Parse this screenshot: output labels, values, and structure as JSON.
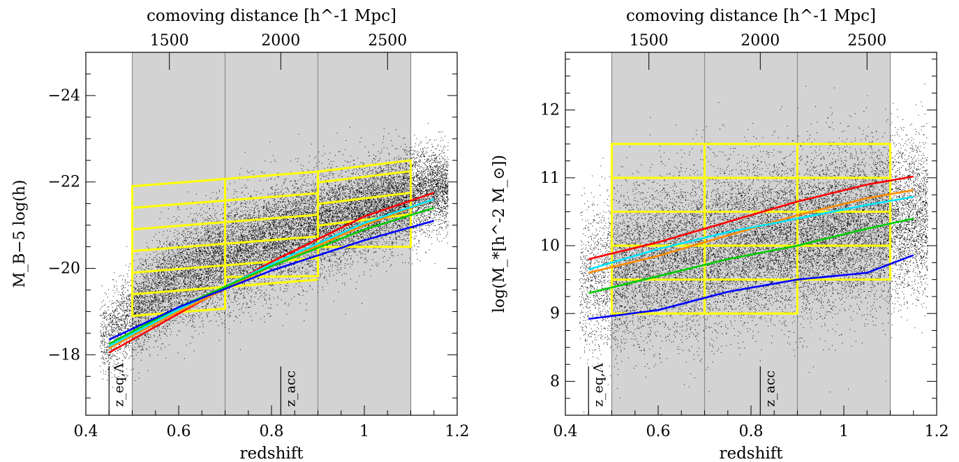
{
  "chart_data": [
    {
      "type": "scatter",
      "title": "",
      "xlabel": "redshift",
      "ylabel": "M_B−5 log(h)",
      "top_axis_label": "comoving distance [h^-1 Mpc]",
      "top_ticks": [
        1500,
        2000,
        2500
      ],
      "top_tick_z": [
        0.58,
        0.82,
        1.05
      ],
      "xlim": [
        0.4,
        1.2
      ],
      "ylim": [
        -16.6,
        -25.0
      ],
      "y_inverted": true,
      "xticks": [
        0.4,
        0.6,
        0.8,
        1.0,
        1.2
      ],
      "xtick_labels": [
        "0.4",
        "0.6",
        "0.8",
        "1",
        "1.2"
      ],
      "yticks": [
        -18,
        -20,
        -22,
        -24
      ],
      "ytick_labels": [
        "−18",
        "−20",
        "−22",
        "−24"
      ],
      "markers": [
        {
          "label": "z_eq,Λ",
          "x": 0.45
        },
        {
          "label": "z_acc",
          "x": 0.82
        }
      ],
      "shaded_volumes": {
        "x_edges": [
          0.5,
          0.7,
          0.9,
          1.1
        ],
        "color": "#d3d3d3"
      },
      "scatter_cloud": {
        "color": "#000000",
        "x_range": [
          0.43,
          1.18
        ],
        "upper_edge": {
          "x": [
            0.43,
            0.6,
            0.8,
            1.0,
            1.15
          ],
          "y": [
            -19.2,
            -21.0,
            -21.9,
            -22.4,
            -22.8
          ]
        },
        "lower_edge": {
          "x": [
            0.43,
            0.6,
            0.8,
            1.0,
            1.15
          ],
          "y": [
            -17.4,
            -18.7,
            -19.5,
            -20.3,
            -20.9
          ]
        }
      },
      "selection_boxes": {
        "color": "#ffff00",
        "columns": [
          {
            "x0": 0.5,
            "x1": 0.7,
            "top": [
              -21.9,
              -22.07
            ],
            "bottom": [
              -18.9,
              -19.07
            ],
            "rows": [
              -21.4,
              -20.9,
              -20.4,
              -19.9,
              -19.4
            ]
          },
          {
            "x0": 0.7,
            "x1": 0.9,
            "top": [
              -22.07,
              -22.24
            ],
            "bottom": [
              -19.8,
              -19.82
            ],
            "rows": [
              -21.57,
              -21.07,
              -20.57,
              -20.07,
              -19.57
            ]
          },
          {
            "x0": 0.9,
            "x1": 1.1,
            "top": [
              -22.24,
              -22.5
            ],
            "bottom": [
              -20.5,
              -20.5
            ],
            "rows": [
              -21.99,
              -21.49,
              -20.99
            ]
          }
        ]
      },
      "series": [
        {
          "color": "#ff0000",
          "x": [
            0.45,
            0.6,
            0.8,
            1.0,
            1.15
          ],
          "y": [
            -18.05,
            -18.95,
            -20.15,
            -21.2,
            -21.75
          ]
        },
        {
          "color": "#ff8c00",
          "x": [
            0.45,
            0.6,
            0.8,
            1.0,
            1.15
          ],
          "y": [
            -18.15,
            -19.0,
            -20.05,
            -21.0,
            -21.6
          ]
        },
        {
          "color": "#00e5ff",
          "x": [
            0.45,
            0.6,
            0.8,
            1.0,
            1.15
          ],
          "y": [
            -18.2,
            -19.05,
            -20.1,
            -21.05,
            -21.6
          ]
        },
        {
          "color": "#00cc00",
          "x": [
            0.45,
            0.6,
            0.8,
            1.0,
            1.15
          ],
          "y": [
            -18.25,
            -19.1,
            -20.05,
            -20.9,
            -21.4
          ]
        },
        {
          "color": "#0000ff",
          "x": [
            0.45,
            0.6,
            0.8,
            1.0,
            1.15
          ],
          "y": [
            -18.35,
            -19.1,
            -19.95,
            -20.65,
            -21.1
          ]
        }
      ]
    },
    {
      "type": "scatter",
      "title": "",
      "xlabel": "redshift",
      "ylabel": "log(M_*[h^-2 M_⊙])",
      "top_axis_label": "comoving distance [h^-1 Mpc]",
      "top_ticks": [
        1500,
        2000,
        2500
      ],
      "top_tick_z": [
        0.58,
        0.82,
        1.05
      ],
      "xlim": [
        0.4,
        1.2
      ],
      "ylim": [
        7.5,
        12.85
      ],
      "y_inverted": false,
      "xticks": [
        0.4,
        0.6,
        0.8,
        1.0,
        1.2
      ],
      "xtick_labels": [
        "0.4",
        "0.6",
        "0.8",
        "1",
        "1.2"
      ],
      "yticks": [
        8,
        9,
        10,
        11,
        12
      ],
      "ytick_labels": [
        "8",
        "9",
        "10",
        "11",
        "12"
      ],
      "markers": [
        {
          "label": "z_eq,Λ",
          "x": 0.45
        },
        {
          "label": "z_acc",
          "x": 0.82
        }
      ],
      "shaded_volumes": {
        "x_edges": [
          0.5,
          0.7,
          0.9,
          1.1
        ],
        "color": "#d3d3d3"
      },
      "scatter_cloud": {
        "color": "#000000",
        "x_range": [
          0.43,
          1.18
        ],
        "upper_edge": {
          "x": [
            0.43,
            0.6,
            0.8,
            1.0,
            1.15
          ],
          "y": [
            10.5,
            11.0,
            11.2,
            11.4,
            11.6
          ]
        },
        "lower_edge": {
          "x": [
            0.43,
            0.6,
            0.8,
            1.0,
            1.15
          ],
          "y": [
            8.4,
            8.6,
            8.9,
            9.1,
            9.3
          ]
        }
      },
      "selection_boxes": {
        "color": "#ffff00",
        "columns": [
          {
            "x0": 0.5,
            "x1": 0.7,
            "top": [
              11.5,
              11.5
            ],
            "bottom": [
              9.0,
              9.0
            ],
            "rows": [
              11.0,
              10.5,
              10.0,
              9.5
            ]
          },
          {
            "x0": 0.7,
            "x1": 0.9,
            "top": [
              11.5,
              11.5
            ],
            "bottom": [
              9.0,
              9.0
            ],
            "rows": [
              11.0,
              10.5,
              10.0,
              9.5
            ]
          },
          {
            "x0": 0.9,
            "x1": 1.1,
            "top": [
              11.5,
              11.5
            ],
            "bottom": [
              9.5,
              9.5
            ],
            "rows": [
              11.0,
              10.5,
              10.0
            ]
          }
        ]
      },
      "series": [
        {
          "color": "#ff0000",
          "x": [
            0.45,
            0.6,
            0.75,
            0.9,
            1.05,
            1.15
          ],
          "y": [
            9.8,
            10.05,
            10.35,
            10.65,
            10.9,
            11.02
          ]
        },
        {
          "color": "#ff8c00",
          "x": [
            0.45,
            0.6,
            0.75,
            0.9,
            1.05,
            1.15
          ],
          "y": [
            9.6,
            9.85,
            10.15,
            10.45,
            10.7,
            10.82
          ]
        },
        {
          "color": "#00e5ff",
          "x": [
            0.45,
            0.6,
            0.75,
            0.9,
            1.05,
            1.15
          ],
          "y": [
            9.65,
            9.95,
            10.2,
            10.4,
            10.6,
            10.72
          ]
        },
        {
          "color": "#00cc00",
          "x": [
            0.45,
            0.6,
            0.75,
            0.9,
            1.05,
            1.15
          ],
          "y": [
            9.3,
            9.55,
            9.8,
            10.0,
            10.25,
            10.4
          ]
        },
        {
          "color": "#0000ff",
          "x": [
            0.45,
            0.6,
            0.75,
            0.9,
            1.05,
            1.15
          ],
          "y": [
            8.92,
            9.05,
            9.32,
            9.5,
            9.6,
            9.86
          ]
        }
      ]
    }
  ]
}
